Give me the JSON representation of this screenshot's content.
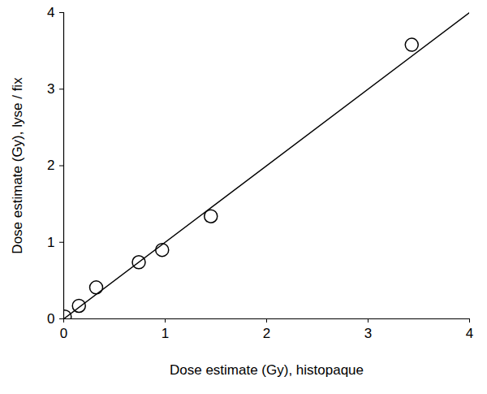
{
  "chart_data": {
    "type": "scatter",
    "x_label": "Dose estimate (Gy), histopaque",
    "y_label": "Dose estimate (Gy), lyse / fix",
    "xlim": [
      0,
      4
    ],
    "ylim": [
      0,
      4
    ],
    "xticks": [
      0,
      1,
      2,
      3,
      4
    ],
    "yticks": [
      0,
      1,
      2,
      3,
      4
    ],
    "grid": false,
    "series": [
      {
        "type": "scatter",
        "marker": "circle",
        "color": "#000000",
        "x": [
          0.01,
          0.15,
          0.32,
          0.74,
          0.97,
          1.45,
          3.43
        ],
        "values": [
          0.03,
          0.17,
          0.41,
          0.74,
          0.9,
          1.34,
          3.58
        ]
      },
      {
        "type": "line",
        "line_style": "solid",
        "color": "#000000",
        "x": [
          0,
          4
        ],
        "values": [
          0,
          4
        ]
      }
    ]
  }
}
